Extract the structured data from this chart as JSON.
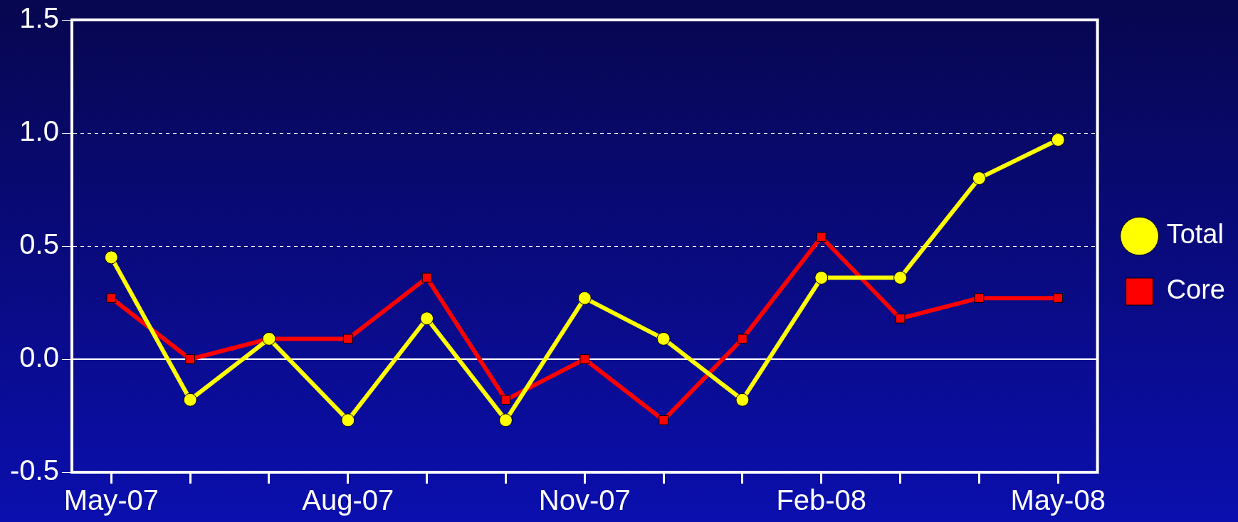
{
  "chart_data": {
    "type": "line",
    "categories": [
      "May-07",
      null,
      null,
      "Aug-07",
      null,
      null,
      "Nov-07",
      null,
      null,
      "Feb-08",
      null,
      null,
      "May-08"
    ],
    "series": [
      {
        "name": "Total",
        "color": "#ffff00",
        "marker": "circle",
        "values": [
          0.45,
          -0.18,
          0.09,
          -0.27,
          0.18,
          -0.27,
          0.27,
          0.09,
          -0.18,
          0.36,
          0.36,
          0.8,
          0.97
        ]
      },
      {
        "name": "Core",
        "color": "#ff0000",
        "marker": "square",
        "values": [
          0.27,
          0,
          0.09,
          0.09,
          0.36,
          -0.18,
          0,
          -0.27,
          0.09,
          0.54,
          0.18,
          0.27,
          0.27
        ]
      }
    ],
    "ylim": [
      -0.5,
      1.5
    ],
    "yticks": [
      -0.5,
      {
        "value": 0,
        "label": "0.0"
      },
      0.5,
      {
        "value": 1,
        "label": "1.0"
      },
      1.5
    ],
    "grid": "y",
    "line_style": "solid",
    "legend": "right",
    "ref_lines": [
      {
        "axis": "y",
        "value": 0,
        "color": "#ffffff"
      }
    ]
  }
}
